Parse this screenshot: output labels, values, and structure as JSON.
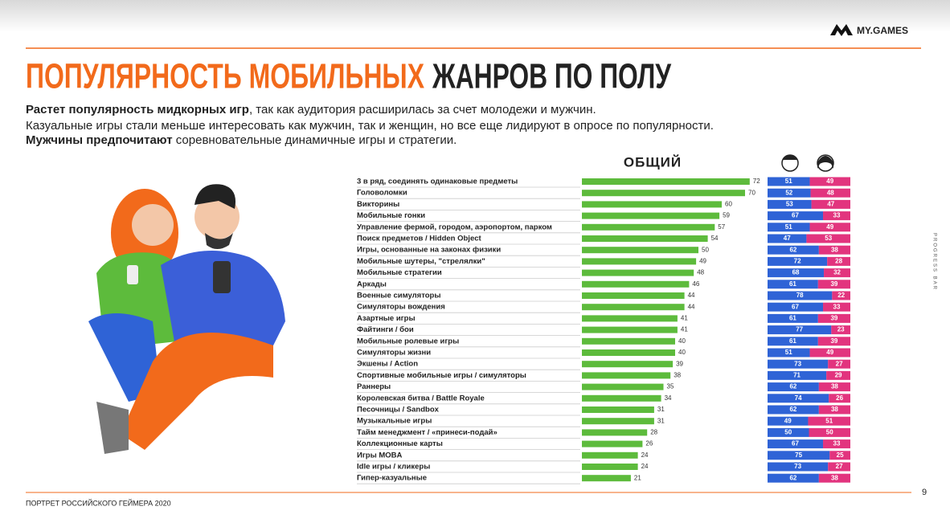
{
  "header": {
    "title_part1": "ПОПУЛЯРНОСТЬ МОБИЛЬНЫХ",
    "title_part2": "ЖАНРОВ ПО ПОЛУ",
    "logo": "MY.GAMES"
  },
  "intro": [
    {
      "bold": "Растет популярность мидкорных игр",
      "text": ", так как аудитория расширилась за счет молодежи и мужчин."
    },
    {
      "text": "Казуальные игры стали меньше интересовать как мужчин, так и женщин, но все еще лидируют в опросе по популярности."
    },
    {
      "bold": "Мужчины предпочитают",
      "text": " соревновательные динамичные игры и стратегии."
    }
  ],
  "chart_data": {
    "type": "bar",
    "title": "ОБЩИЙ",
    "color": "#5dbb3c",
    "categories": [
      "3 в ряд, соединять одинаковые предметы",
      "Головоломки",
      "Викторины",
      "Мобильные гонки",
      "Управление фермой, городом, аэропортом, парком",
      "Поиск предметов / Hidden Object",
      "Игры, основанные на законах физики",
      "Мобильные шутеры, \"стрелялки\"",
      "Мобильные стратегии",
      "Аркады",
      "Военные симуляторы",
      "Симуляторы вождения",
      "Азартные игры",
      "Файтинги / бои",
      "Мобильные ролевые игры",
      "Симуляторы жизни",
      "Экшены / Action",
      "Спортивные мобильные игры / симуляторы",
      "Раннеры",
      "Королевская битва / Battle Royale",
      "Песочницы / Sandbox",
      "Музыкальные игры",
      "Тайм менеджмент / «принеси-подай»",
      "Коллекционные карты",
      "Игры MOBA",
      "Idle игры / кликеры",
      "Гипер-казуальные"
    ],
    "values": [
      72,
      70,
      60,
      59,
      57,
      54,
      50,
      49,
      48,
      46,
      44,
      44,
      41,
      41,
      40,
      40,
      39,
      38,
      35,
      34,
      31,
      31,
      28,
      26,
      24,
      24,
      21
    ],
    "series": [
      {
        "color": "#2f63d6",
        "values": [
          51,
          52,
          53,
          67,
          51,
          47,
          62,
          72,
          68,
          61,
          78,
          67,
          61,
          77,
          61,
          51,
          73,
          71,
          62,
          74,
          62,
          49,
          50,
          67,
          75,
          73,
          62
        ]
      },
      {
        "color": "#e2347e",
        "values": [
          49,
          48,
          47,
          33,
          49,
          53,
          38,
          28,
          32,
          39,
          22,
          33,
          39,
          23,
          39,
          49,
          27,
          29,
          38,
          26,
          38,
          51,
          50,
          33,
          25,
          27,
          38
        ]
      }
    ]
  },
  "footer": {
    "text": "ПОРТРЕТ РОССИЙСКОГО ГЕЙМЕРА 2020",
    "page": "9"
  },
  "side_label": "PROGRESS BAR"
}
